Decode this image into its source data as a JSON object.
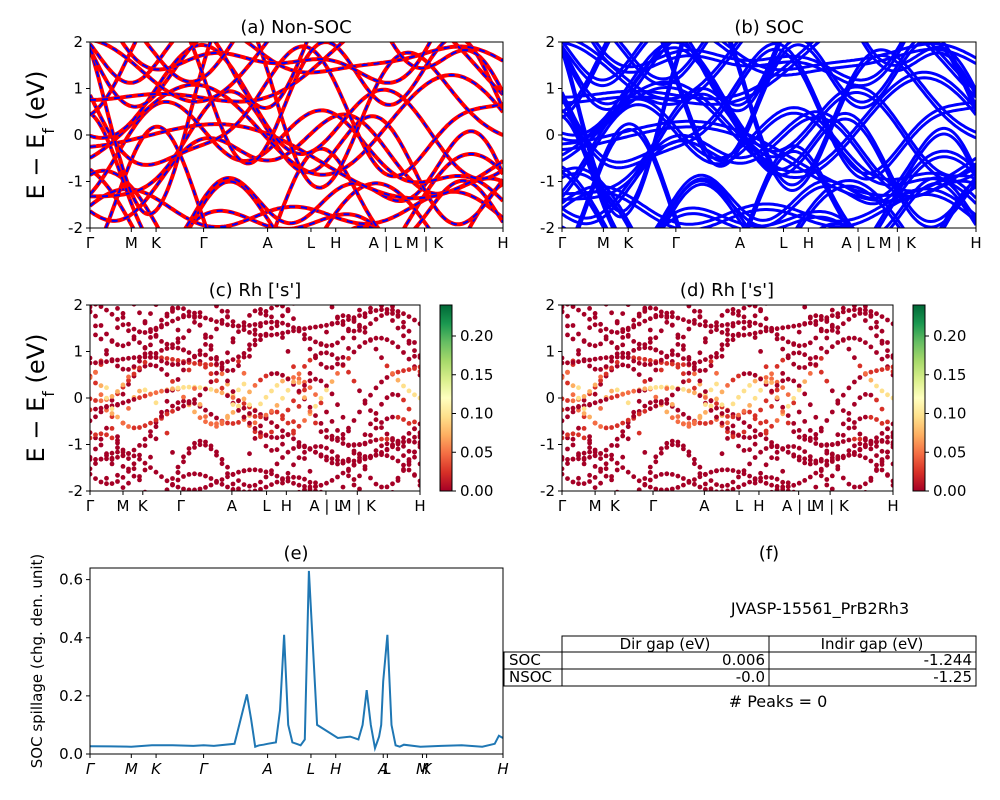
{
  "kpath": {
    "labels": [
      "Γ",
      "M",
      "K",
      "Γ",
      "A",
      "L",
      "H",
      "A | L",
      "M | K",
      "H"
    ],
    "positions": [
      0,
      1,
      1.6,
      2.75,
      4.3,
      5.35,
      5.95,
      7.15,
      8.1,
      10
    ]
  },
  "spill_labels": [
    "Γ",
    "M",
    "K",
    "Γ",
    "A",
    "L",
    "H",
    "A",
    "L",
    "M",
    "K",
    "H"
  ],
  "spill_positions": [
    0,
    1,
    1.6,
    2.75,
    4.3,
    5.35,
    5.95,
    7.1,
    7.2,
    8.05,
    8.15,
    10
  ],
  "panels": [
    {
      "id": "a",
      "title": "(a) Non-SOC",
      "ylabel": "E − E_f (eV)"
    },
    {
      "id": "b",
      "title": "(b) SOC",
      "ylabel": ""
    },
    {
      "id": "c",
      "title": "(c)  Rh ['s']",
      "ylabel": "E − E_f (eV)"
    },
    {
      "id": "d",
      "title": "(d) Rh ['s']",
      "ylabel": ""
    },
    {
      "id": "e",
      "title": "(e)",
      "ylabel": "SOC spillage (chg. den. unit)"
    },
    {
      "id": "f",
      "title": "(f)",
      "ylabel": ""
    }
  ],
  "colorbar": {
    "ticks": [
      "0.00",
      "0.05",
      "0.10",
      "0.15",
      "0.20"
    ],
    "range": [
      0,
      0.24
    ],
    "colormap": "RdYlGn"
  },
  "band_colors": {
    "nonsoc_up": "#ff0000",
    "nonsoc_dn": "#0000ff",
    "soc": "#0000ff"
  },
  "table": {
    "title": "JVASP-15561_PrB2Rh3",
    "columns": [
      "Dir gap (eV)",
      "Indir gap (eV)"
    ],
    "rows": [
      {
        "label": "SOC",
        "dir": "0.006",
        "indir": "-1.244"
      },
      {
        "label": "NSOC",
        "dir": "-0.0",
        "indir": "-1.25"
      }
    ],
    "footer": "# Peaks = 0"
  },
  "chart_data": [
    {
      "type": "line",
      "panel": "a",
      "title": "(a) Non-SOC",
      "ylabel": "E − E_f (eV)",
      "ylim": [
        -2,
        2
      ],
      "yticks": [
        -2,
        -1,
        0,
        1,
        2
      ],
      "series": [
        {
          "name": "",
          "values": [
            1.4,
            1.8,
            2.0,
            1.6,
            0.6,
            1.2,
            1.9,
            1.4,
            0.8,
            1.2,
            1.6
          ]
        }
      ]
    },
    {
      "type": "line",
      "panel": "b",
      "title": "(b) SOC",
      "ylim": [
        -2,
        2
      ],
      "yticks": [
        -2,
        -1,
        0,
        1,
        2
      ]
    },
    {
      "type": "scatter",
      "panel": "c",
      "title": "(c)  Rh ['s']",
      "ylim": [
        -2,
        2
      ],
      "yticks": [
        -2,
        -1,
        0,
        1,
        2
      ]
    },
    {
      "type": "scatter",
      "panel": "d",
      "title": "(d) Rh ['s']",
      "ylim": [
        -2,
        2
      ],
      "yticks": [
        -2,
        -1,
        0,
        1,
        2
      ]
    },
    {
      "type": "line",
      "panel": "e",
      "title": "(e)",
      "ylabel": "SOC spillage (chg. den. unit)",
      "ylim": [
        0,
        0.64
      ],
      "yticks": [
        0.0,
        0.2,
        0.4,
        0.6
      ],
      "x": [
        0,
        0.5,
        1,
        1.5,
        2,
        2.5,
        2.75,
        3,
        3.5,
        3.8,
        3.9,
        4.0,
        4.05,
        4.1,
        4.2,
        4.3,
        4.5,
        4.6,
        4.7,
        4.8,
        4.9,
        5.0,
        5.1,
        5.2,
        5.3,
        5.5,
        6.0,
        6.3,
        6.5,
        6.6,
        6.7,
        6.8,
        6.9,
        7.0,
        7.05,
        7.1,
        7.2,
        7.3,
        7.4,
        7.5,
        7.6,
        8.0,
        8.5,
        9.0,
        9.5,
        9.8,
        9.9,
        10
      ],
      "values": [
        0.027,
        0.026,
        0.025,
        0.03,
        0.03,
        0.028,
        0.03,
        0.028,
        0.035,
        0.205,
        0.12,
        0.025,
        0.028,
        0.03,
        0.032,
        0.035,
        0.04,
        0.15,
        0.41,
        0.1,
        0.04,
        0.035,
        0.03,
        0.05,
        0.63,
        0.1,
        0.055,
        0.06,
        0.05,
        0.1,
        0.22,
        0.1,
        0.02,
        0.06,
        0.1,
        0.25,
        0.41,
        0.1,
        0.03,
        0.025,
        0.032,
        0.025,
        0.028,
        0.03,
        0.025,
        0.035,
        0.063,
        0.055
      ]
    }
  ]
}
